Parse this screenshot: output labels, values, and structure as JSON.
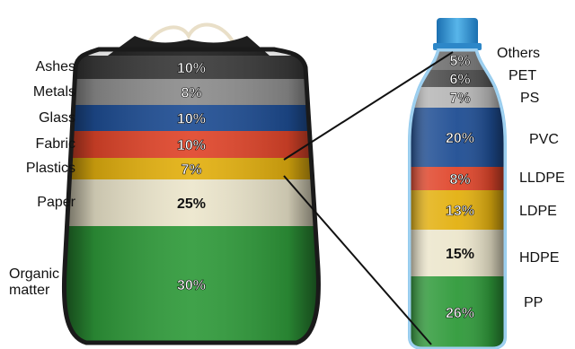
{
  "chart_data": [
    {
      "type": "stacked-bar",
      "categories": [
        "Ashes",
        "Metals",
        "Glass",
        "Fabric",
        "Plastics",
        "Paper",
        "Organic matter"
      ],
      "values": [
        10,
        8,
        10,
        10,
        7,
        25,
        30
      ],
      "value_labels": [
        "10%",
        "8%",
        "10%",
        "10%",
        "7%",
        "25%",
        "30%"
      ],
      "colors": [
        "#3a3a3a",
        "#8d8d8d",
        "#1e4d93",
        "#e0452a",
        "#e3b00f",
        "#ece6cc",
        "#2f9a3a"
      ]
    },
    {
      "type": "stacked-bar",
      "categories": [
        "Others",
        "PET",
        "PS",
        "PVC",
        "LLDPE",
        "LDPE",
        "HDPE",
        "PP"
      ],
      "values": [
        5,
        6,
        7,
        20,
        8,
        13,
        15,
        26
      ],
      "value_labels": [
        "5%",
        "6%",
        "7%",
        "20%",
        "8%",
        "13%",
        "15%",
        "26%"
      ],
      "colors": [
        "#6f6f6f",
        "#4a4a4a",
        "#b6b6b6",
        "#1e4d93",
        "#e0452a",
        "#e3b00f",
        "#ece6cc",
        "#2f9a3a"
      ]
    }
  ]
}
